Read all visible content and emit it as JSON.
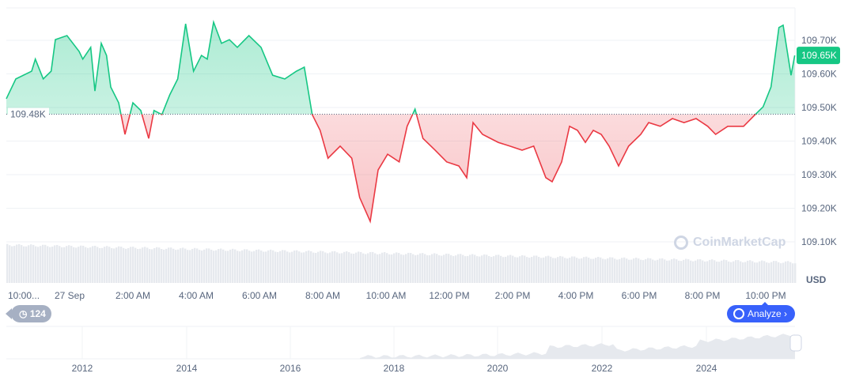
{
  "chart_data": {
    "type": "area",
    "currency": "USD",
    "baseline_label": "109.48K",
    "baseline_value": 109.48,
    "current_label": "109.65K",
    "ylim": [
      109.05,
      109.8
    ],
    "y_ticks": [
      "109.10K",
      "109.20K",
      "109.30K",
      "109.40K",
      "109.50K",
      "109.60K",
      "109.70K"
    ],
    "y_tick_values": [
      109.1,
      109.2,
      109.3,
      109.4,
      109.5,
      109.6,
      109.7
    ],
    "x_ticks": [
      "10:00...",
      "27 Sep",
      "2:00 AM",
      "4:00 AM",
      "6:00 AM",
      "8:00 AM",
      "10:00 AM",
      "12:00 PM",
      "2:00 PM",
      "4:00 PM",
      "6:00 PM",
      "8:00 PM",
      "10:00 PM"
    ],
    "x_tick_times": [
      "22:00",
      "00:00",
      "02:00",
      "04:00",
      "06:00",
      "08:00",
      "10:00",
      "12:00",
      "14:00",
      "16:00",
      "18:00",
      "20:00",
      "22:00"
    ],
    "colors": {
      "up": "#16c784",
      "down": "#ea3943",
      "volume": "#e6e9ee",
      "accent": "#3861fb"
    },
    "points": [
      [
        "22:00",
        109.526
      ],
      [
        "22:18",
        109.585
      ],
      [
        "22:48",
        109.608
      ],
      [
        "22:55",
        109.644
      ],
      [
        "23:10",
        109.585
      ],
      [
        "23:25",
        109.608
      ],
      [
        "23:33",
        109.702
      ],
      [
        "23:55",
        109.714
      ],
      [
        "00:18",
        109.667
      ],
      [
        "00:25",
        109.644
      ],
      [
        "00:40",
        109.679
      ],
      [
        "00:48",
        109.549
      ],
      [
        "01:00",
        109.691
      ],
      [
        "01:10",
        109.655
      ],
      [
        "01:18",
        109.561
      ],
      [
        "01:33",
        109.514
      ],
      [
        "01:45",
        109.42
      ],
      [
        "02:00",
        109.514
      ],
      [
        "02:15",
        109.491
      ],
      [
        "02:30",
        109.408
      ],
      [
        "02:40",
        109.491
      ],
      [
        "02:55",
        109.479
      ],
      [
        "03:10",
        109.538
      ],
      [
        "03:25",
        109.585
      ],
      [
        "03:40",
        109.749
      ],
      [
        "03:55",
        109.608
      ],
      [
        "04:10",
        109.655
      ],
      [
        "04:21",
        109.644
      ],
      [
        "04:33",
        109.754
      ],
      [
        "04:48",
        109.691
      ],
      [
        "05:03",
        109.702
      ],
      [
        "05:18",
        109.679
      ],
      [
        "05:40",
        109.714
      ],
      [
        "06:03",
        109.679
      ],
      [
        "06:25",
        109.596
      ],
      [
        "06:48",
        109.585
      ],
      [
        "07:10",
        109.608
      ],
      [
        "07:25",
        109.62
      ],
      [
        "07:40",
        109.479
      ],
      [
        "07:55",
        109.432
      ],
      [
        "08:10",
        109.349
      ],
      [
        "08:33",
        109.385
      ],
      [
        "08:55",
        109.349
      ],
      [
        "09:10",
        109.232
      ],
      [
        "09:30",
        109.161
      ],
      [
        "09:45",
        109.314
      ],
      [
        "10:03",
        109.361
      ],
      [
        "10:25",
        109.338
      ],
      [
        "10:40",
        109.444
      ],
      [
        "10:55",
        109.495
      ],
      [
        "11:10",
        109.408
      ],
      [
        "11:33",
        109.373
      ],
      [
        "11:55",
        109.338
      ],
      [
        "12:18",
        109.326
      ],
      [
        "12:33",
        109.291
      ],
      [
        "12:45",
        109.455
      ],
      [
        "13:03",
        109.42
      ],
      [
        "13:18",
        109.408
      ],
      [
        "13:33",
        109.396
      ],
      [
        "13:55",
        109.385
      ],
      [
        "14:18",
        109.373
      ],
      [
        "14:40",
        109.385
      ],
      [
        "15:03",
        109.291
      ],
      [
        "15:15",
        109.279
      ],
      [
        "15:33",
        109.338
      ],
      [
        "15:48",
        109.444
      ],
      [
        "16:03",
        109.432
      ],
      [
        "16:18",
        109.396
      ],
      [
        "16:33",
        109.432
      ],
      [
        "16:48",
        109.42
      ],
      [
        "17:03",
        109.385
      ],
      [
        "17:21",
        109.326
      ],
      [
        "17:40",
        109.385
      ],
      [
        "18:03",
        109.42
      ],
      [
        "18:18",
        109.455
      ],
      [
        "18:40",
        109.444
      ],
      [
        "19:03",
        109.467
      ],
      [
        "19:25",
        109.455
      ],
      [
        "19:48",
        109.467
      ],
      [
        "20:10",
        109.444
      ],
      [
        "20:25",
        109.42
      ],
      [
        "20:48",
        109.444
      ],
      [
        "21:18",
        109.444
      ],
      [
        "21:40",
        109.479
      ],
      [
        "21:55",
        109.502
      ],
      [
        "22:10",
        109.561
      ],
      [
        "22:25",
        109.738
      ],
      [
        "22:33",
        109.745
      ],
      [
        "22:48",
        109.596
      ],
      [
        "22:55",
        109.655
      ]
    ]
  },
  "navigator": {
    "x_ticks": [
      "2012",
      "2014",
      "2016",
      "2018",
      "2020",
      "2022",
      "2024"
    ]
  },
  "ui": {
    "history_count": "124",
    "analyze_label": "Analyze",
    "currency_label": "USD",
    "watermark": "CoinMarketCap"
  }
}
